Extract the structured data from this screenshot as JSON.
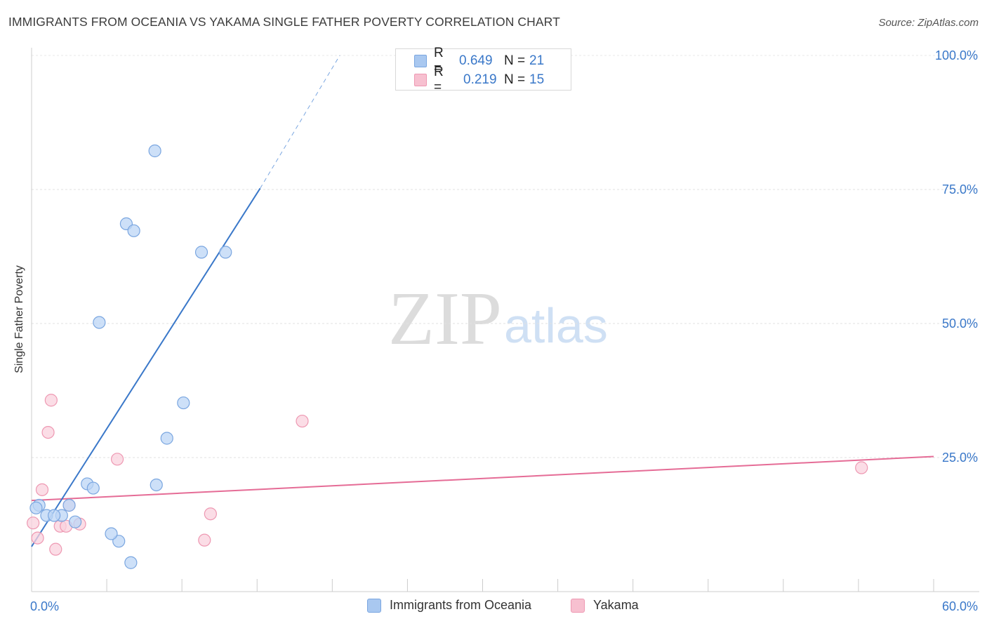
{
  "header": {
    "title": "IMMIGRANTS FROM OCEANIA VS YAKAMA SINGLE FATHER POVERTY CORRELATION CHART",
    "source": "Source: ZipAtlas.com"
  },
  "watermark": {
    "zip": "ZIP",
    "atlas": "atlas"
  },
  "legend": {
    "rows": [
      {
        "r_label": "R =",
        "r_value": "0.649",
        "n_label": "N =",
        "n_value": "21",
        "color": "#a9c8f0",
        "border": "#7aa6e0"
      },
      {
        "r_label": "R =",
        "r_value": "0.219",
        "n_label": "N =",
        "n_value": "15",
        "color": "#f7c0d0",
        "border": "#ee98b2"
      }
    ]
  },
  "bottom_legend": {
    "items": [
      {
        "label": "Immigrants from Oceania",
        "color": "#a9c8f0",
        "border": "#7aa6e0"
      },
      {
        "label": "Yakama",
        "color": "#f7c0d0",
        "border": "#ee98b2"
      }
    ]
  },
  "chart_data": {
    "type": "scatter",
    "title": "IMMIGRANTS FROM OCEANIA VS YAKAMA SINGLE FATHER POVERTY CORRELATION CHART",
    "xlabel": "",
    "ylabel": "Single Father Poverty",
    "xlim": [
      0,
      60
    ],
    "ylim": [
      0,
      100
    ],
    "x_tick_labels": [
      "0.0%",
      "60.0%"
    ],
    "y_ticks": [
      25,
      50,
      75,
      100
    ],
    "y_tick_labels": [
      "25.0%",
      "50.0%",
      "75.0%",
      "100.0%"
    ],
    "grid": true,
    "legend_position": "top-center",
    "series": [
      {
        "name": "Immigrants from Oceania",
        "color": "#7aa6e0",
        "fill": "#bcd5f5",
        "r": 0.649,
        "n": 21,
        "points": [
          [
            0.5,
            16.1
          ],
          [
            1.0,
            14.2
          ],
          [
            2.0,
            14.2
          ],
          [
            2.5,
            16.1
          ],
          [
            2.9,
            13.0
          ],
          [
            3.7,
            20.1
          ],
          [
            4.1,
            19.3
          ],
          [
            4.5,
            50.2
          ],
          [
            5.8,
            9.4
          ],
          [
            5.3,
            10.8
          ],
          [
            6.3,
            68.6
          ],
          [
            6.8,
            67.3
          ],
          [
            6.6,
            5.4
          ],
          [
            8.3,
            19.9
          ],
          [
            8.2,
            82.2
          ],
          [
            9.0,
            28.6
          ],
          [
            10.1,
            35.2
          ],
          [
            11.3,
            63.3
          ],
          [
            12.9,
            63.3
          ],
          [
            0.3,
            15.6
          ],
          [
            1.5,
            14.2
          ]
        ],
        "trend": {
          "x0": 0.0,
          "y0": 8.4,
          "x1": 15.2,
          "y1": 75.2,
          "dashed_to_x": 20.5,
          "dashed_to_y": 100
        }
      },
      {
        "name": "Yakama",
        "color": "#ee98b2",
        "fill": "#f9d1dd",
        "r": 0.219,
        "n": 15,
        "points": [
          [
            0.1,
            12.8
          ],
          [
            0.4,
            10.0
          ],
          [
            0.7,
            19.0
          ],
          [
            1.1,
            29.7
          ],
          [
            1.3,
            35.7
          ],
          [
            1.6,
            7.9
          ],
          [
            1.9,
            12.2
          ],
          [
            2.3,
            12.2
          ],
          [
            2.5,
            16.1
          ],
          [
            3.2,
            12.6
          ],
          [
            5.7,
            24.7
          ],
          [
            11.5,
            9.6
          ],
          [
            11.9,
            14.5
          ],
          [
            18.0,
            31.8
          ],
          [
            55.2,
            23.1
          ]
        ],
        "trend": {
          "x0": 0.0,
          "y0": 17.0,
          "x1": 60.0,
          "y1": 25.2
        }
      }
    ]
  }
}
